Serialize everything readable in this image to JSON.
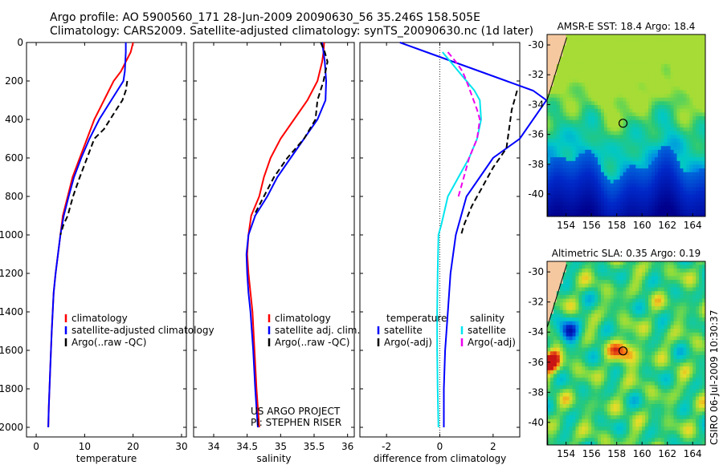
{
  "header": {
    "line1": "Argo profile: AO 5900560_171 28-Jun-2009 20090630_56 35.246S 158.505E",
    "line2": "Climatology: CARS2009. Satellite-adjusted climatology: synTS_20090630.nc (1d later)"
  },
  "footer_credit": {
    "line1": "US ARGO PROJECT",
    "line2": "PI: STEPHEN RISER"
  },
  "side_stamp": "CSIRO 06-Jul-2009 10:30:37",
  "colors": {
    "climatology": "#ff0000",
    "satellite": "#0000ff",
    "argo": "#000000",
    "salinity_satellite": "#00e5ee",
    "salinity_argo": "#ee00ee",
    "land": "#f5c8a0"
  },
  "chart_data": [
    {
      "type": "line",
      "id": "temperature",
      "xlabel": "temperature",
      "xlim": [
        -2,
        31
      ],
      "xticks": [
        0,
        10,
        20,
        30
      ],
      "ylim": [
        2050,
        0
      ],
      "yticks": [
        0,
        200,
        400,
        600,
        800,
        1000,
        1200,
        1400,
        1600,
        1800,
        2000
      ],
      "legend": [
        "climatology",
        "satellite-adjusted climatology",
        "Argo(..raw -QC)"
      ],
      "series": [
        {
          "name": "climatology",
          "color": "climatology",
          "dash": false,
          "x": [
            20.0,
            19.5,
            18.5,
            17.5,
            16.0,
            14.0,
            12.0,
            10.5,
            9.0,
            7.5,
            6.5,
            5.5,
            5.0,
            4.5,
            4.0,
            3.6,
            3.2,
            2.9,
            2.6,
            2.5
          ],
          "y": [
            0,
            50,
            100,
            150,
            200,
            300,
            400,
            500,
            600,
            700,
            800,
            900,
            1000,
            1100,
            1200,
            1300,
            1500,
            1700,
            1900,
            2000
          ]
        },
        {
          "name": "satellite-adjusted climatology",
          "color": "satellite",
          "dash": false,
          "x": [
            18.5,
            18.5,
            18.4,
            18.3,
            18.0,
            15.5,
            13.0,
            11.0,
            9.3,
            7.8,
            6.7,
            5.7,
            5.0,
            4.5,
            4.0,
            3.6,
            3.2,
            2.9,
            2.6,
            2.5
          ],
          "y": [
            0,
            50,
            100,
            150,
            200,
            300,
            400,
            500,
            600,
            700,
            800,
            900,
            1000,
            1100,
            1200,
            1300,
            1500,
            1700,
            1900,
            2000
          ]
        },
        {
          "name": "Argo(..raw -QC)",
          "color": "argo",
          "dash": true,
          "x": [
            18.8,
            18.5,
            17.8,
            16.5,
            14.0,
            12.0,
            10.5,
            9.0,
            7.6,
            6.5,
            5.6,
            5.0
          ],
          "y": [
            200,
            250,
            300,
            350,
            450,
            500,
            600,
            700,
            800,
            900,
            950,
            1000
          ]
        }
      ]
    },
    {
      "type": "line",
      "id": "salinity",
      "xlabel": "salinity",
      "xlim": [
        33.7,
        36.1
      ],
      "xticks": [
        34,
        34.5,
        35,
        35.5,
        36
      ],
      "ylim": [
        2050,
        0
      ],
      "legend": [
        "climatology",
        "satellite adj. clim.",
        "Argo(..raw -QC)"
      ],
      "series": [
        {
          "name": "climatology",
          "color": "climatology",
          "dash": false,
          "x": [
            35.65,
            35.64,
            35.62,
            35.55,
            35.4,
            35.2,
            35.0,
            34.85,
            34.75,
            34.68,
            34.56,
            34.52,
            34.5,
            34.52,
            34.55,
            34.58,
            34.61,
            34.64,
            34.66,
            34.68
          ],
          "y": [
            0,
            50,
            100,
            200,
            300,
            400,
            500,
            600,
            700,
            800,
            900,
            1000,
            1100,
            1200,
            1300,
            1400,
            1600,
            1800,
            1900,
            2000
          ]
        },
        {
          "name": "satellite adj. clim.",
          "color": "satellite",
          "dash": false,
          "x": [
            35.62,
            35.64,
            35.66,
            35.68,
            35.67,
            35.55,
            35.35,
            35.15,
            34.95,
            34.8,
            34.62,
            34.52,
            34.49,
            34.5,
            34.52,
            34.55,
            34.59,
            34.62,
            34.64,
            34.66
          ],
          "y": [
            0,
            50,
            100,
            200,
            300,
            400,
            500,
            600,
            700,
            800,
            900,
            1000,
            1100,
            1200,
            1300,
            1400,
            1600,
            1800,
            1900,
            2000
          ]
        },
        {
          "name": "Argo(..raw -QC)",
          "color": "argo",
          "dash": true,
          "x": [
            35.6,
            35.66,
            35.7,
            35.64,
            35.55,
            35.52,
            35.35,
            35.1,
            34.9,
            34.75,
            34.6
          ],
          "y": [
            0,
            50,
            100,
            200,
            300,
            400,
            500,
            600,
            700,
            800,
            900
          ]
        }
      ]
    },
    {
      "type": "line",
      "id": "difference",
      "xlabel": "difference from climatology",
      "xlim": [
        -3,
        3
      ],
      "xticks": [
        -2,
        0,
        2
      ],
      "ylim": [
        2050,
        0
      ],
      "legend_left": [
        "temperature",
        "satellite",
        "Argo(-adj)"
      ],
      "legend_right": [
        "salinity",
        "satellite",
        "Argo(-adj)"
      ],
      "series": [
        {
          "name": "temperature satellite",
          "color": "satellite",
          "dash": false,
          "x": [
            -1.5,
            -0.5,
            0.5,
            1.5,
            2.5,
            3.5,
            4.0,
            3.0,
            2.5,
            2.0,
            1.5,
            1.0,
            0.6,
            0.4,
            0.3,
            0.2,
            0.15,
            0.15
          ],
          "y": [
            0,
            50,
            100,
            150,
            200,
            250,
            300,
            500,
            550,
            600,
            700,
            800,
            1000,
            1200,
            1400,
            1600,
            1800,
            2000
          ]
        },
        {
          "name": "temperature Argo(-adj)",
          "color": "argo",
          "dash": true,
          "x": [
            2.9,
            2.7,
            2.6,
            2.5,
            2.0,
            1.6,
            1.2,
            0.9,
            0.8
          ],
          "y": [
            250,
            350,
            450,
            550,
            650,
            750,
            850,
            950,
            1000
          ]
        },
        {
          "name": "salinity satellite",
          "color": "salinity_satellite",
          "dash": false,
          "x": [
            0.1,
            0.4,
            0.7,
            1.0,
            1.3,
            1.5,
            1.55,
            1.4,
            1.1,
            0.7,
            0.3,
            0.05,
            -0.05,
            -0.08,
            -0.1,
            -0.1,
            -0.08,
            -0.05
          ],
          "y": [
            50,
            100,
            150,
            200,
            250,
            300,
            400,
            500,
            600,
            700,
            800,
            950,
            1000,
            1200,
            1400,
            1600,
            1800,
            2000
          ]
        },
        {
          "name": "salinity Argo(-adj)",
          "color": "salinity_argo",
          "dash": true,
          "x": [
            0.3,
            0.6,
            0.85,
            1.0,
            1.4,
            1.5,
            1.4,
            1.1,
            0.9,
            0.7
          ],
          "y": [
            50,
            100,
            150,
            200,
            350,
            400,
            500,
            600,
            700,
            800
          ]
        }
      ]
    },
    {
      "type": "heatmap",
      "id": "sst_map",
      "title": "AMSR-E SST: 18.4 Argo: 18.4",
      "xlim": [
        152.5,
        165
      ],
      "ylim": [
        -41.5,
        -29.3
      ],
      "xticks": [
        154,
        156,
        158,
        160,
        162,
        164
      ],
      "yticks": [
        -30,
        -32,
        -34,
        -36,
        -38,
        -40
      ],
      "marker": {
        "lon": 158.5,
        "lat": -35.25
      }
    },
    {
      "type": "heatmap",
      "id": "sla_map",
      "title": "Altimetric SLA: 0.35 Argo: 0.19",
      "xlim": [
        152.5,
        165
      ],
      "ylim": [
        -41.5,
        -29.3
      ],
      "xticks": [
        154,
        156,
        158,
        160,
        162,
        164
      ],
      "yticks": [
        -30,
        -32,
        -34,
        -36,
        -38,
        -40
      ],
      "marker": {
        "lon": 158.5,
        "lat": -35.25
      }
    }
  ]
}
